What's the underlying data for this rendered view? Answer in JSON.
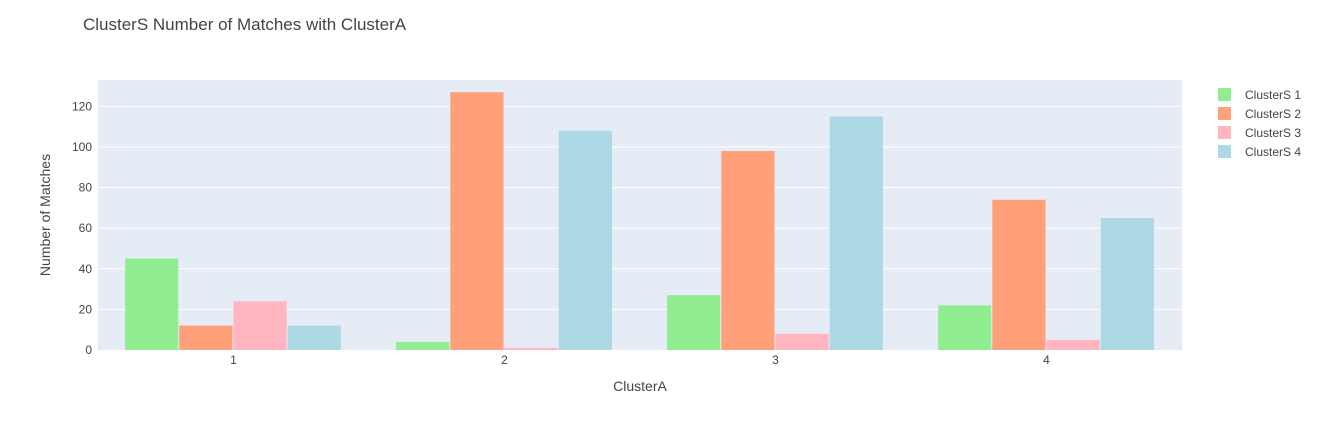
{
  "chart_data": {
    "type": "bar",
    "title": "ClusterS Number of Matches with ClusterA",
    "xlabel": "ClusterA",
    "ylabel": "Number of Matches",
    "categories": [
      "1",
      "2",
      "3",
      "4"
    ],
    "ylim": [
      0,
      133
    ],
    "yticks": [
      0,
      20,
      40,
      60,
      80,
      100,
      120
    ],
    "grid": true,
    "legend_position": "right",
    "plot_background": "#E5ECF6",
    "series": [
      {
        "name": "ClusterS 1",
        "color": "#90EE90",
        "values": [
          45,
          4,
          27,
          22
        ]
      },
      {
        "name": "ClusterS 2",
        "color": "#FFA07A",
        "values": [
          12,
          127,
          98,
          74
        ]
      },
      {
        "name": "ClusterS 3",
        "color": "#FFB6C1",
        "values": [
          24,
          1,
          8,
          5
        ]
      },
      {
        "name": "ClusterS 4",
        "color": "#ADD8E6",
        "values": [
          12,
          108,
          115,
          65
        ]
      }
    ]
  }
}
